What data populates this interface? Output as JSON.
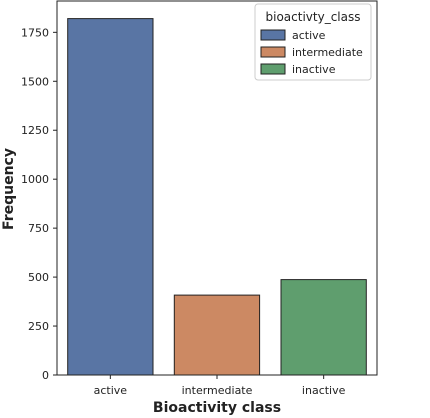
{
  "chart_data": {
    "type": "bar",
    "categories": [
      "active",
      "intermediate",
      "inactive"
    ],
    "values": [
      1820,
      408,
      487
    ],
    "colors": [
      "#5975a4",
      "#cc8963",
      "#5f9e6e"
    ],
    "xlabel": "Bioactivity class",
    "ylabel": "Frequency",
    "ylim": [
      0,
      1910
    ],
    "yticks": [
      0,
      250,
      500,
      750,
      1000,
      1250,
      1500,
      1750
    ],
    "grid": false,
    "legend": {
      "title": "bioactivty_class",
      "placement": "top-right",
      "entries": [
        "active",
        "intermediate",
        "inactive"
      ]
    }
  }
}
